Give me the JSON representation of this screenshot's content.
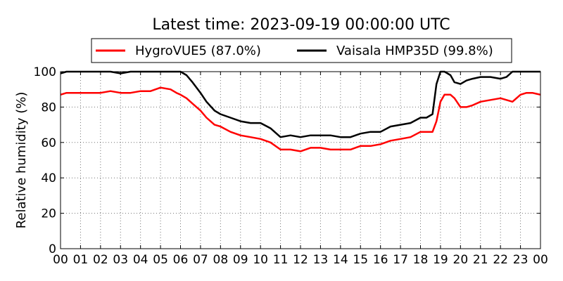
{
  "chart_data": {
    "type": "line",
    "title": "Latest time: 2023-09-19 00:00:00 UTC",
    "xlabel": "",
    "ylabel": "Relative humidity (%)",
    "xlim": [
      0,
      24
    ],
    "ylim": [
      0,
      100
    ],
    "x_tick_labels": [
      "00",
      "01",
      "02",
      "03",
      "04",
      "05",
      "06",
      "07",
      "08",
      "09",
      "10",
      "11",
      "12",
      "13",
      "14",
      "15",
      "16",
      "17",
      "18",
      "19",
      "20",
      "21",
      "22",
      "23",
      "00"
    ],
    "y_tick_labels": [
      "0",
      "20",
      "40",
      "60",
      "80",
      "100"
    ],
    "grid": true,
    "legend_position": "top",
    "series": [
      {
        "name": "HygroVUE5 (87.0%)",
        "color": "#ff0000",
        "x": [
          0,
          0.3,
          1,
          2,
          2.5,
          3,
          3.5,
          4,
          4.5,
          5,
          5.5,
          5.8,
          6,
          6.3,
          6.6,
          7,
          7.3,
          7.7,
          8,
          8.5,
          9,
          9.5,
          10,
          10.5,
          11,
          11.5,
          12,
          12.5,
          13,
          13.5,
          14,
          14.5,
          15,
          15.5,
          16,
          16.5,
          17,
          17.5,
          18,
          18.3,
          18.6,
          18.8,
          19,
          19.2,
          19.5,
          19.7,
          20,
          20.3,
          20.6,
          21,
          21.5,
          22,
          22.3,
          22.6,
          23,
          23.3,
          23.6,
          24
        ],
        "y": [
          87,
          88,
          88,
          88,
          89,
          88,
          88,
          89,
          89,
          91,
          90,
          88,
          87,
          85,
          82,
          78,
          74,
          70,
          69,
          66,
          64,
          63,
          62,
          60,
          56,
          56,
          55,
          57,
          57,
          56,
          56,
          56,
          58,
          58,
          59,
          61,
          62,
          63,
          66,
          66,
          66,
          72,
          83,
          87,
          87,
          85,
          80,
          80,
          81,
          83,
          84,
          85,
          84,
          83,
          87,
          88,
          88,
          87
        ]
      },
      {
        "name": "Vaisala HMP35D (99.8%)",
        "color": "#000000",
        "x": [
          0,
          0.3,
          1,
          2,
          2.5,
          3,
          3.5,
          4,
          4.5,
          5,
          5.5,
          5.8,
          6,
          6.3,
          6.6,
          7,
          7.3,
          7.7,
          8,
          8.5,
          9,
          9.5,
          10,
          10.5,
          11,
          11.5,
          12,
          12.5,
          13,
          13.5,
          14,
          14.5,
          15,
          15.5,
          16,
          16.5,
          17,
          17.5,
          18,
          18.3,
          18.6,
          18.8,
          19,
          19.2,
          19.5,
          19.7,
          20,
          20.3,
          20.6,
          21,
          21.5,
          22,
          22.3,
          22.6,
          23,
          23.3,
          23.6,
          24
        ],
        "y": [
          99,
          100,
          100,
          100,
          100,
          99,
          100,
          100,
          100,
          100,
          100,
          100,
          100,
          98,
          94,
          88,
          83,
          78,
          76,
          74,
          72,
          71,
          71,
          68,
          63,
          64,
          63,
          64,
          64,
          64,
          63,
          63,
          65,
          66,
          66,
          69,
          70,
          71,
          74,
          74,
          76,
          93,
          100,
          100,
          98,
          94,
          93,
          95,
          96,
          97,
          97,
          96,
          97,
          100,
          100,
          100,
          100,
          100
        ]
      }
    ]
  }
}
